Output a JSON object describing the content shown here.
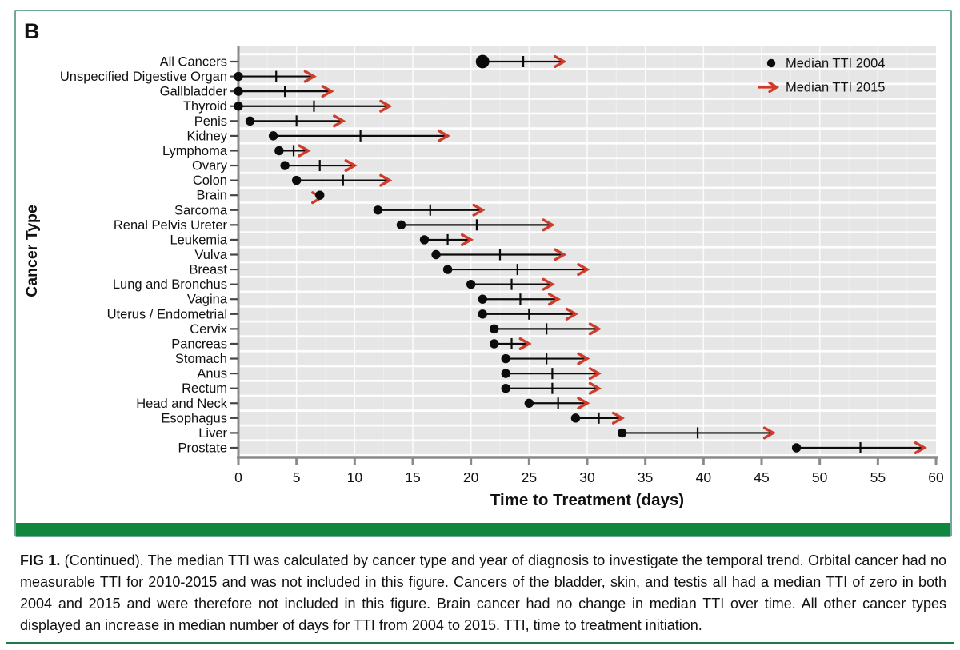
{
  "figure": {
    "panel_label": "B",
    "colors": {
      "plot_bg": "#e6e6e6",
      "grid_white": "#ffffff",
      "axis_gray": "#8a8a8a",
      "tick_dark": "#444444",
      "dot_black": "#0b0b0b",
      "arrow_red": "#cf3b2a",
      "text_black": "#111111",
      "panel_border": "#6fa89b",
      "green_bar": "#10873f",
      "bottom_rule": "#1d7a46"
    }
  },
  "chart_data": {
    "type": "dumbbell-arrow",
    "title": "",
    "xlabel": "Time to Treatment (days)",
    "ylabel": "Cancer Type",
    "xlim": [
      0,
      60
    ],
    "xticks": [
      0,
      5,
      10,
      15,
      20,
      25,
      30,
      35,
      40,
      45,
      50,
      55,
      60
    ],
    "grid": "on",
    "legend_position": "top-right-inside",
    "legend": [
      {
        "marker": "dot",
        "label": "Median TTI 2004"
      },
      {
        "marker": "arrow",
        "label": "Median TTI 2015"
      }
    ],
    "note": "Each row: black dot = median TTI in 2004, red arrow tip = median TTI in 2015, small crossbar = midpoint between the two values. Brain shows no change (dot and arrow overlap).",
    "categories": [
      "All Cancers",
      "Unspecified Digestive Organ",
      "Gallbladder",
      "Thyroid",
      "Penis",
      "Kidney",
      "Lymphoma",
      "Ovary",
      "Colon",
      "Brain",
      "Sarcoma",
      "Renal Pelvis Ureter",
      "Leukemia",
      "Vulva",
      "Breast",
      "Lung and Bronchus",
      "Vagina",
      "Uterus / Endometrial",
      "Cervix",
      "Pancreas",
      "Stomach",
      "Anus",
      "Rectum",
      "Head and Neck",
      "Esophagus",
      "Liver",
      "Prostate"
    ],
    "series": [
      {
        "name": "Median TTI 2004",
        "values": [
          21,
          0,
          0,
          0,
          1,
          3,
          3.5,
          4,
          5,
          7,
          12,
          14,
          16,
          17,
          18,
          20,
          21,
          21,
          22,
          22,
          23,
          23,
          23,
          25,
          29,
          33,
          48
        ]
      },
      {
        "name": "Median TTI 2015",
        "values": [
          28,
          6.5,
          8,
          13,
          9,
          18,
          6,
          10,
          13,
          7,
          21,
          27,
          20,
          28,
          30,
          27,
          27.5,
          29,
          31,
          25,
          30,
          31,
          31,
          30,
          33,
          46,
          59
        ]
      }
    ]
  },
  "caption": {
    "label": "FIG 1.",
    "text": " (Continued).  The median TTI was calculated by cancer type and year of diagnosis to investigate the temporal trend. Orbital cancer had no measurable TTI for 2010-2015 and was not included in this figure. Cancers of the bladder, skin, and testis all had a median TTI of zero in both 2004 and 2015 and were therefore not included in this figure. Brain cancer had no change in median TTI over time. All other cancer types displayed an increase in median number of days for TTI from 2004 to 2015. TTI, time to treatment initiation."
  }
}
